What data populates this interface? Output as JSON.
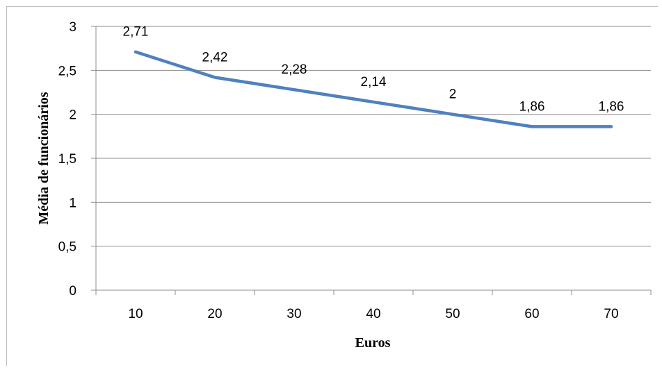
{
  "chart_data": {
    "type": "line",
    "title": "",
    "xlabel": "Euros",
    "ylabel": "Média de funcionários",
    "categories": [
      "10",
      "20",
      "30",
      "40",
      "50",
      "60",
      "70"
    ],
    "series": [
      {
        "values": [
          2.71,
          2.42,
          2.28,
          2.14,
          2,
          1.86,
          1.86
        ],
        "data_labels": [
          "2,71",
          "2,42",
          "2,28",
          "2,14",
          "2",
          "1,86",
          "1,86"
        ],
        "color": "#4f81bd"
      }
    ],
    "ylim": [
      0,
      3
    ],
    "yticks": [
      0,
      0.5,
      1,
      1.5,
      2,
      2.5,
      3
    ],
    "ytick_labels": [
      "0",
      "0,5",
      "1",
      "1,5",
      "2",
      "2,5",
      "3"
    ],
    "grid": true,
    "legend": "none"
  }
}
